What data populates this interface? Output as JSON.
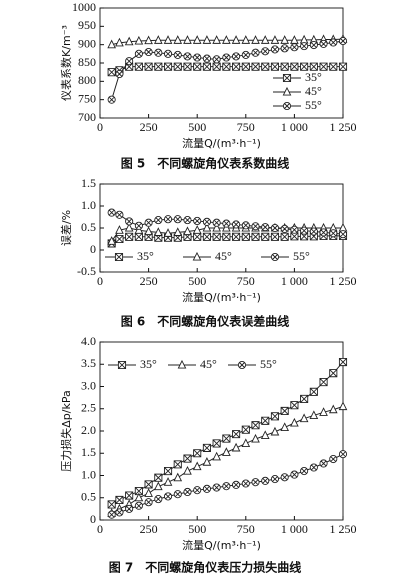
{
  "chart_data": [
    {
      "type": "line",
      "title": "图 5　不同螺旋角仪表系数曲线",
      "x_label": "流量Q/(m³·h⁻¹)",
      "y_label": "仪表系数K/m⁻³",
      "x": [
        60,
        100,
        150,
        200,
        250,
        300,
        350,
        400,
        450,
        500,
        550,
        600,
        650,
        700,
        750,
        800,
        850,
        900,
        950,
        1000,
        1050,
        1100,
        1150,
        1200,
        1250
      ],
      "xlim": [
        0,
        1250
      ],
      "xticks": [
        0,
        250,
        500,
        750,
        {
          "value": 1000,
          "label": "1 000"
        },
        {
          "value": 1250,
          "label": "1 250"
        }
      ],
      "ylim": [
        700,
        1000
      ],
      "yticks": [
        700,
        750,
        800,
        850,
        900,
        950,
        1000
      ],
      "legend": "lower right",
      "series": [
        {
          "name": "35°",
          "color": "#222222",
          "marker": "square-x",
          "values": [
            825,
            830,
            840,
            840,
            840,
            840,
            840,
            840,
            840,
            840,
            840,
            840,
            840,
            840,
            840,
            840,
            840,
            840,
            840,
            840,
            840,
            840,
            840,
            840,
            840
          ]
        },
        {
          "name": "45°",
          "color": "#222222",
          "marker": "triangle",
          "values": [
            900,
            905,
            908,
            910,
            911,
            912,
            912,
            912,
            912,
            912,
            912,
            912,
            912,
            912,
            912,
            912,
            912,
            912,
            912,
            912,
            913,
            913,
            914,
            914,
            915
          ]
        },
        {
          "name": "55°",
          "color": "#222222",
          "marker": "circle-x",
          "values": [
            750,
            820,
            855,
            875,
            880,
            878,
            875,
            872,
            868,
            865,
            862,
            860,
            865,
            868,
            872,
            878,
            882,
            887,
            890,
            893,
            896,
            899,
            902,
            906,
            910
          ]
        }
      ]
    },
    {
      "type": "line",
      "title": "图 6　不同螺旋角仪表误差曲线",
      "x_label": "流量Q/(m³·h⁻¹)",
      "y_label": "误差/%",
      "x": [
        60,
        100,
        150,
        200,
        250,
        300,
        350,
        400,
        450,
        500,
        550,
        600,
        650,
        700,
        750,
        800,
        850,
        900,
        950,
        1000,
        1050,
        1100,
        1150,
        1200,
        1250
      ],
      "xlim": [
        0,
        1250
      ],
      "xticks": [
        0,
        250,
        500,
        750,
        {
          "value": 1000,
          "label": "1 000"
        },
        {
          "value": 1250,
          "label": "1 250"
        }
      ],
      "ylim": [
        -0.5,
        1.5
      ],
      "yticks": [
        -0.5,
        0,
        0.5,
        {
          "value": 1,
          "label": "1.0"
        },
        1.5
      ],
      "legend": "lower center",
      "series": [
        {
          "name": "35°",
          "color": "#222222",
          "marker": "square-x",
          "values": [
            0.15,
            0.25,
            0.3,
            0.3,
            0.3,
            0.28,
            0.28,
            0.28,
            0.3,
            0.3,
            0.3,
            0.3,
            0.3,
            0.3,
            0.3,
            0.3,
            0.3,
            0.3,
            0.3,
            0.31,
            0.31,
            0.31,
            0.32,
            0.32,
            0.32
          ]
        },
        {
          "name": "45°",
          "color": "#222222",
          "marker": "triangle",
          "values": [
            0.2,
            0.45,
            0.5,
            0.45,
            0.42,
            0.4,
            0.38,
            0.4,
            0.42,
            0.45,
            0.5,
            0.5,
            0.5,
            0.5,
            0.5,
            0.5,
            0.5,
            0.5,
            0.5,
            0.5,
            0.5,
            0.5,
            0.5,
            0.5,
            0.5
          ]
        },
        {
          "name": "55°",
          "color": "#222222",
          "marker": "circle-x",
          "values": [
            0.85,
            0.8,
            0.65,
            0.55,
            0.62,
            0.68,
            0.7,
            0.7,
            0.68,
            0.66,
            0.64,
            0.62,
            0.6,
            0.58,
            0.56,
            0.54,
            0.52,
            0.5,
            0.48,
            0.46,
            0.44,
            0.42,
            0.4,
            0.38,
            0.36
          ]
        }
      ]
    },
    {
      "type": "line",
      "title": "图 7　不同螺旋角仪表压力损失曲线",
      "x_label": "流量Q/(m³·h⁻¹)",
      "y_label": "压力损失Δp/kPa",
      "x": [
        60,
        100,
        150,
        200,
        250,
        300,
        350,
        400,
        450,
        500,
        550,
        600,
        650,
        700,
        750,
        800,
        850,
        900,
        950,
        1000,
        1050,
        1100,
        1150,
        1200,
        1250
      ],
      "xlim": [
        0,
        1250
      ],
      "xticks": [
        0,
        250,
        500,
        750,
        {
          "value": 1000,
          "label": "1 000"
        },
        {
          "value": 1250,
          "label": "1 250"
        }
      ],
      "ylim": [
        0,
        4
      ],
      "yticks": [
        0,
        0.5,
        {
          "value": 1,
          "label": "1.0"
        },
        1.5,
        {
          "value": 2,
          "label": "2.0"
        },
        2.5,
        {
          "value": 3,
          "label": "3.0"
        },
        3.5,
        {
          "value": 4,
          "label": "4.0"
        }
      ],
      "legend": "upper left",
      "series": [
        {
          "name": "35°",
          "color": "#222222",
          "marker": "square-x",
          "values": [
            0.35,
            0.45,
            0.55,
            0.65,
            0.8,
            0.95,
            1.1,
            1.25,
            1.38,
            1.5,
            1.62,
            1.72,
            1.83,
            1.93,
            2.03,
            2.13,
            2.23,
            2.33,
            2.45,
            2.58,
            2.72,
            2.88,
            3.1,
            3.3,
            3.55
          ]
        },
        {
          "name": "45°",
          "color": "#222222",
          "marker": "triangle",
          "values": [
            0.15,
            0.25,
            0.35,
            0.5,
            0.6,
            0.75,
            0.85,
            0.95,
            1.1,
            1.2,
            1.3,
            1.42,
            1.52,
            1.62,
            1.72,
            1.82,
            1.9,
            1.98,
            2.08,
            2.18,
            2.28,
            2.35,
            2.42,
            2.48,
            2.55
          ]
        },
        {
          "name": "55°",
          "color": "#222222",
          "marker": "circle-x",
          "values": [
            0.12,
            0.17,
            0.25,
            0.32,
            0.4,
            0.47,
            0.53,
            0.58,
            0.63,
            0.67,
            0.7,
            0.73,
            0.76,
            0.79,
            0.82,
            0.85,
            0.88,
            0.92,
            0.96,
            1.02,
            1.1,
            1.18,
            1.27,
            1.37,
            1.48
          ]
        }
      ]
    }
  ]
}
